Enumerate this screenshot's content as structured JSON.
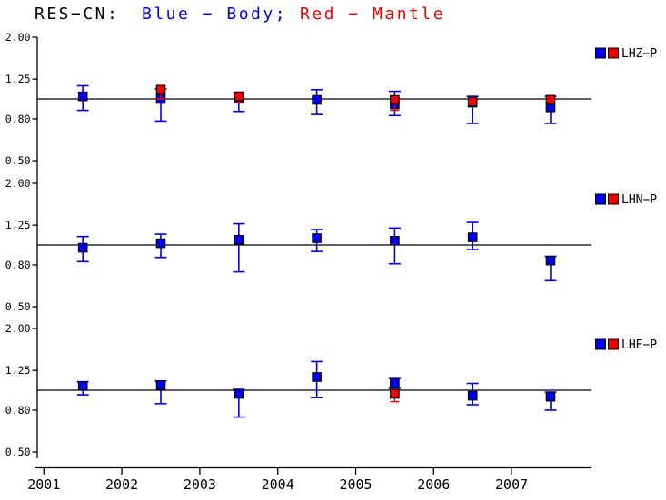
{
  "chart_data": {
    "type": "scatter",
    "title_black": "RES−CN:",
    "title_blue": "Blue − Body;",
    "title_red": "Red − Mantle",
    "colors": {
      "body": "#0000ee",
      "mantle": "#ee0000",
      "axis": "#000000"
    },
    "x_axis": {
      "tick_years": [
        "2001",
        "2002",
        "2003",
        "2004",
        "2005",
        "2006",
        "2007"
      ],
      "range": [
        2001,
        2008.03
      ]
    },
    "y_axis": {
      "scale": "log",
      "tick_labels": [
        "2.00",
        "1.25",
        "0.80",
        "0.50"
      ],
      "tick_values": [
        2.0,
        1.25,
        0.8,
        0.5
      ],
      "top_value": 2.0,
      "reference_value": 1.0
    },
    "panels": [
      {
        "legend": "LHZ−P",
        "blue": [
          {
            "year": 2001.5,
            "v": 1.03,
            "lo": 0.88,
            "hi": 1.16
          },
          {
            "year": 2002.5,
            "v": 1.0,
            "lo": 0.78,
            "hi": 1.12
          },
          {
            "year": 2003.5,
            "v": 1.01,
            "lo": 0.87,
            "hi": 1.07
          },
          {
            "year": 2004.5,
            "v": 0.99,
            "lo": 0.84,
            "hi": 1.11
          },
          {
            "year": 2005.5,
            "v": 0.94,
            "lo": 0.83,
            "hi": 1.09
          },
          {
            "year": 2006.5,
            "v": 0.96,
            "lo": 0.76,
            "hi": 1.03
          },
          {
            "year": 2007.5,
            "v": 0.91,
            "lo": 0.76,
            "hi": 1.03
          }
        ],
        "red": [
          {
            "year": 2002.5,
            "v": 1.11,
            "lo": 1.0,
            "hi": 1.15
          },
          {
            "year": 2003.5,
            "v": 1.03,
            "lo": 0.96,
            "hi": 1.08
          },
          {
            "year": 2005.5,
            "v": 0.99,
            "lo": 0.88,
            "hi": 1.03
          },
          {
            "year": 2006.5,
            "v": 0.97,
            "lo": 0.93,
            "hi": 1.01
          },
          {
            "year": 2007.5,
            "v": 0.99,
            "lo": 0.95,
            "hi": 1.04
          }
        ]
      },
      {
        "legend": "LHN−P",
        "blue": [
          {
            "year": 2001.5,
            "v": 0.97,
            "lo": 0.83,
            "hi": 1.1
          },
          {
            "year": 2002.5,
            "v": 1.02,
            "lo": 0.87,
            "hi": 1.13
          },
          {
            "year": 2003.5,
            "v": 1.06,
            "lo": 0.74,
            "hi": 1.27
          },
          {
            "year": 2004.5,
            "v": 1.08,
            "lo": 0.93,
            "hi": 1.19
          },
          {
            "year": 2005.5,
            "v": 1.05,
            "lo": 0.81,
            "hi": 1.21
          },
          {
            "year": 2006.5,
            "v": 1.09,
            "lo": 0.95,
            "hi": 1.29
          },
          {
            "year": 2007.5,
            "v": 0.84,
            "lo": 0.67,
            "hi": 0.88
          }
        ],
        "red": []
      },
      {
        "legend": "LHE−P",
        "blue": [
          {
            "year": 2001.5,
            "v": 1.05,
            "lo": 0.95,
            "hi": 1.1
          },
          {
            "year": 2002.5,
            "v": 1.06,
            "lo": 0.86,
            "hi": 1.11
          },
          {
            "year": 2003.5,
            "v": 0.96,
            "lo": 0.74,
            "hi": 1.01
          },
          {
            "year": 2004.5,
            "v": 1.16,
            "lo": 0.92,
            "hi": 1.38
          },
          {
            "year": 2005.5,
            "v": 1.08,
            "lo": 1.02,
            "hi": 1.14
          },
          {
            "year": 2006.5,
            "v": 0.94,
            "lo": 0.85,
            "hi": 1.08
          },
          {
            "year": 2007.5,
            "v": 0.93,
            "lo": 0.8,
            "hi": 0.98
          }
        ],
        "red": [
          {
            "year": 2005.5,
            "v": 0.96,
            "lo": 0.88,
            "hi": 1.01
          }
        ]
      }
    ]
  }
}
